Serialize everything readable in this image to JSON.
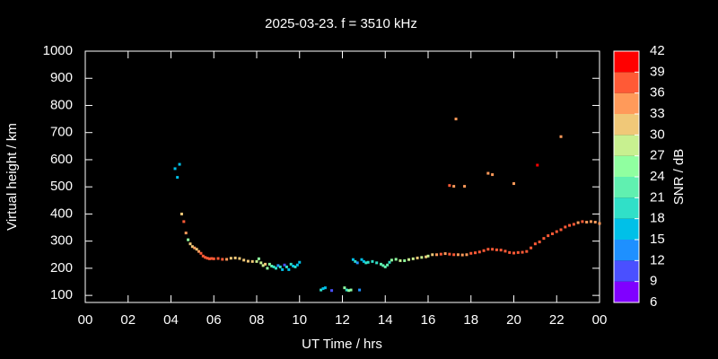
{
  "chart_data": {
    "type": "scatter",
    "title": "2025-03-23. f = 3510 kHz",
    "xlabel": "UT Time / hrs",
    "ylabel": "Virtual height / km",
    "xlim": [
      0,
      24
    ],
    "xticks": [
      {
        "value": 0,
        "label": "00"
      },
      {
        "value": 2,
        "label": "02"
      },
      {
        "value": 4,
        "label": "04"
      },
      {
        "value": 6,
        "label": "06"
      },
      {
        "value": 8,
        "label": "08"
      },
      {
        "value": 10,
        "label": "10"
      },
      12,
      14,
      16,
      18,
      20,
      22,
      {
        "value": 24,
        "label": "00"
      }
    ],
    "ylim": [
      74,
      1000
    ],
    "yticks": [
      100,
      200,
      300,
      400,
      500,
      600,
      700,
      800,
      900,
      1000
    ],
    "colorbar": {
      "label": "SNR / dB",
      "lim": [
        6,
        42
      ],
      "ticks": [
        6,
        9,
        12,
        15,
        18,
        21,
        24,
        27,
        30,
        33,
        36,
        39,
        42
      ],
      "colors": [
        "#8000ff",
        "#4a50ff",
        "#1e90ff",
        "#00c0e8",
        "#30e0c8",
        "#60f0b0",
        "#90ffa0",
        "#c8f090",
        "#f0c878",
        "#ff9a5a",
        "#ff5a36",
        "#ff0000"
      ]
    },
    "x": [
      4.19,
      4.3,
      4.4,
      4.5,
      4.6,
      4.7,
      4.8,
      4.9,
      5.0,
      5.1,
      5.2,
      5.3,
      5.4,
      5.5,
      5.6,
      5.7,
      5.8,
      5.9,
      6.0,
      6.2,
      6.4,
      6.6,
      6.8,
      7.0,
      7.2,
      7.4,
      7.6,
      7.8,
      8.0,
      8.1,
      8.2,
      8.3,
      8.4,
      8.5,
      8.6,
      8.7,
      8.8,
      8.9,
      9.0,
      9.1,
      9.2,
      9.3,
      9.4,
      9.5,
      9.6,
      9.7,
      9.8,
      9.9,
      10.0,
      11.0,
      11.1,
      11.2,
      11.5,
      12.1,
      12.2,
      12.3,
      12.4,
      12.8,
      12.5,
      12.6,
      12.7,
      12.9,
      13.0,
      13.1,
      13.2,
      13.4,
      13.6,
      13.8,
      13.9,
      14.0,
      14.1,
      14.2,
      14.3,
      14.5,
      14.7,
      14.9,
      15.1,
      15.3,
      15.5,
      15.7,
      15.9,
      16.0,
      16.2,
      16.4,
      16.6,
      16.8,
      17.0,
      17.2,
      17.4,
      17.6,
      17.8,
      18.0,
      18.2,
      18.4,
      18.6,
      18.8,
      19.0,
      19.2,
      19.4,
      19.6,
      19.8,
      20.0,
      20.2,
      20.4,
      20.6,
      20.8,
      21.0,
      21.2,
      21.4,
      21.6,
      21.8,
      22.0,
      22.2,
      22.4,
      22.6,
      22.8,
      23.0,
      23.2,
      23.4,
      23.6,
      23.8,
      24.0,
      17.0,
      17.2,
      17.3,
      17.7,
      18.8,
      19.0,
      20.0,
      21.1,
      22.2
    ],
    "values": [
      567,
      535,
      583,
      400,
      372,
      330,
      305,
      290,
      280,
      275,
      270,
      262,
      255,
      245,
      240,
      237,
      235,
      236,
      235,
      236,
      233,
      233,
      237,
      238,
      236,
      230,
      226,
      225,
      225,
      235,
      220,
      210,
      215,
      200,
      215,
      208,
      205,
      200,
      210,
      205,
      195,
      212,
      205,
      195,
      215,
      208,
      205,
      212,
      222,
      120,
      125,
      128,
      118,
      128,
      120,
      118,
      120,
      120,
      232,
      225,
      220,
      232,
      225,
      220,
      222,
      225,
      220,
      215,
      210,
      205,
      212,
      222,
      230,
      233,
      228,
      228,
      232,
      235,
      238,
      240,
      242,
      245,
      250,
      250,
      252,
      254,
      252,
      250,
      250,
      249,
      250,
      255,
      257,
      260,
      265,
      270,
      270,
      268,
      267,
      263,
      258,
      256,
      258,
      259,
      262,
      275,
      290,
      297,
      310,
      320,
      327,
      335,
      342,
      352,
      358,
      362,
      368,
      372,
      370,
      372,
      370,
      365,
      505,
      502,
      750,
      502,
      550,
      545,
      512,
      580,
      685
    ],
    "snr": [
      16,
      17,
      17,
      31,
      38,
      35,
      25,
      31,
      32,
      33,
      32,
      34,
      36,
      37,
      36,
      37,
      38,
      37,
      38,
      37,
      36,
      35,
      32,
      30,
      31,
      32,
      31,
      30,
      28,
      26,
      28,
      29,
      30,
      26,
      24,
      22,
      20,
      18,
      14,
      19,
      16,
      11,
      20,
      16,
      18,
      16,
      19,
      15,
      17,
      18,
      17,
      16,
      11,
      24,
      20,
      24,
      25,
      12,
      17,
      18,
      14,
      15,
      16,
      19,
      18,
      18,
      19,
      21,
      22,
      23,
      22,
      20,
      24,
      25,
      27,
      25,
      27,
      28,
      30,
      29,
      31,
      28,
      30,
      34,
      36,
      35,
      37,
      36,
      35,
      35,
      34,
      36,
      37,
      38,
      37,
      38,
      36,
      37,
      37,
      38,
      37,
      38,
      37,
      38,
      37,
      38,
      36,
      38,
      38,
      37,
      38,
      38,
      37,
      38,
      37,
      36,
      35,
      36,
      35,
      34,
      35,
      34,
      38,
      34,
      33,
      33,
      34,
      34,
      33,
      39,
      33
    ]
  }
}
